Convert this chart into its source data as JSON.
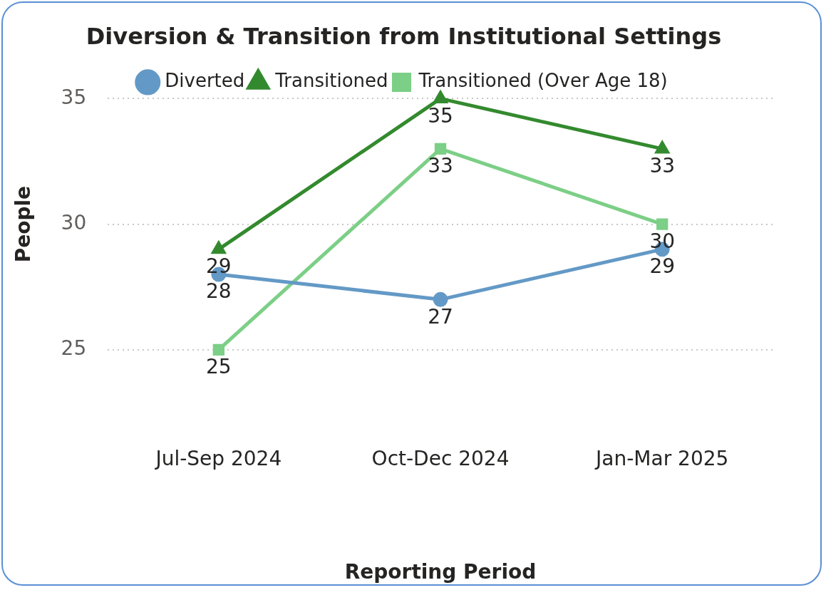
{
  "chart_data": {
    "type": "line",
    "title": "Diversion & Transition from Institutional Settings",
    "xlabel": "Reporting Period",
    "ylabel": "People",
    "categories": [
      "Jul-Sep 2024",
      "Oct-Dec 2024",
      "Jan-Mar 2025"
    ],
    "series": [
      {
        "name": "Diverted",
        "color": "#6399c6",
        "values": [
          28,
          27,
          29
        ],
        "marker": "circle"
      },
      {
        "name": "Transitioned",
        "color": "#338a2e",
        "values": [
          29,
          35,
          33
        ],
        "marker": "triangle"
      },
      {
        "name": "Transitioned (Over Age 18)",
        "color": "#7ccf86",
        "values": [
          25,
          33,
          30
        ],
        "marker": "square"
      }
    ],
    "ylim": [
      25,
      35
    ],
    "yticks": [
      25,
      30,
      35
    ],
    "grid": "y",
    "legend": "top",
    "data_labels": true,
    "line_style": "solid"
  }
}
